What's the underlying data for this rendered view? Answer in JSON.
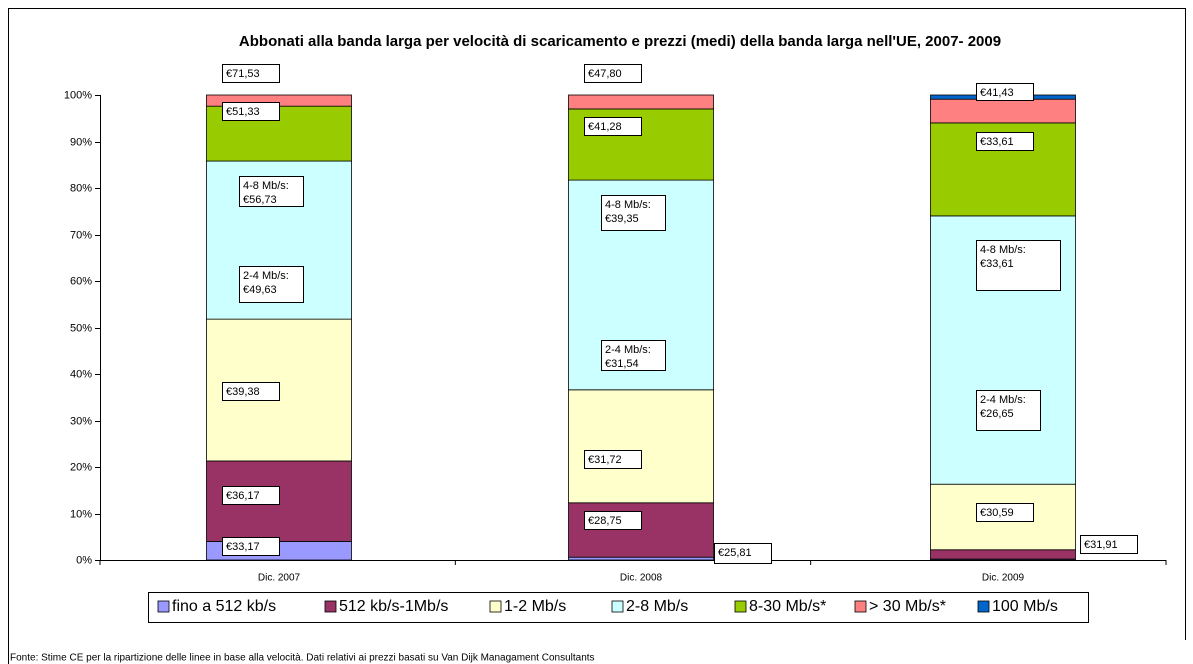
{
  "chart_data": {
    "type": "bar",
    "stacked": true,
    "title": "Abbonati alla banda larga per velocità di scaricamento e prezzi (medi) della banda larga nell'UE, 2007- 2009",
    "note": "Fonte: Stime CE per la ripartizione delle linee in base alla velocità. Dati relativi ai prezzi basati su Van Dijk Managament Consultants",
    "categories": [
      "Dic. 2007",
      "Dic. 2008",
      "Dic. 2009"
    ],
    "series": [
      {
        "name": "fino a 512 kb/s",
        "color": "#9999ff",
        "values": [
          4.0,
          0.6,
          0.2
        ]
      },
      {
        "name": "512 kb/s-1Mb/s",
        "color": "#993366",
        "values": [
          17.3,
          11.7,
          2.0
        ]
      },
      {
        "name": "1-2 Mb/s",
        "color": "#ffffcc",
        "values": [
          30.5,
          24.3,
          14.1
        ]
      },
      {
        "name": "2-8 Mb/s",
        "color": "#ccffff",
        "values": [
          34.0,
          45.1,
          57.7
        ]
      },
      {
        "name": "8-30 Mb/s*",
        "color": "#99cc00",
        "values": [
          11.8,
          15.3,
          20.0
        ]
      },
      {
        "name": "> 30 Mb/s*",
        "color": "#ff8080",
        "values": [
          2.4,
          3.0,
          5.1
        ]
      },
      {
        "name": "100 Mb/s",
        "color": "#0066cc",
        "values": [
          0,
          0,
          0.9
        ]
      }
    ],
    "ylim": [
      0,
      100
    ],
    "yticks": [
      {
        "value": 0,
        "label": "0%"
      },
      {
        "value": 10,
        "label": "10%"
      },
      {
        "value": 20,
        "label": "20%"
      },
      {
        "value": 30,
        "label": "30%"
      },
      {
        "value": 40,
        "label": "40%"
      },
      {
        "value": 50,
        "label": "50%"
      },
      {
        "value": 60,
        "label": "60%"
      },
      {
        "value": 70,
        "label": "70%"
      },
      {
        "value": 80,
        "label": "80%"
      },
      {
        "value": 90,
        "label": "90%"
      },
      {
        "value": 100,
        "label": "100%"
      }
    ],
    "legend": "bottom",
    "annotations": [
      [
        "€71,53"
      ],
      [
        "€51,33"
      ],
      [
        "4-8 Mb/s:",
        "€56,73"
      ],
      [
        "2-4 Mb/s:",
        "€49,63"
      ],
      [
        "€39,38"
      ],
      [
        "€36,17"
      ],
      [
        "€33,17"
      ],
      [
        "€47,80"
      ],
      [
        "€41,28"
      ],
      [
        "4-8 Mb/s:",
        "€39,35"
      ],
      [
        "2-4 Mb/s:",
        "€31,54"
      ],
      [
        "€31,72"
      ],
      [
        "€28,75"
      ],
      [
        "€25,81"
      ],
      [
        "€41,43"
      ],
      [
        "€33,61"
      ],
      [
        "4-8 Mb/s:",
        "€33,61"
      ],
      [
        "2-4 Mb/s:",
        "€26,65"
      ],
      [
        "€30,59"
      ],
      [
        "€31,91"
      ]
    ]
  }
}
